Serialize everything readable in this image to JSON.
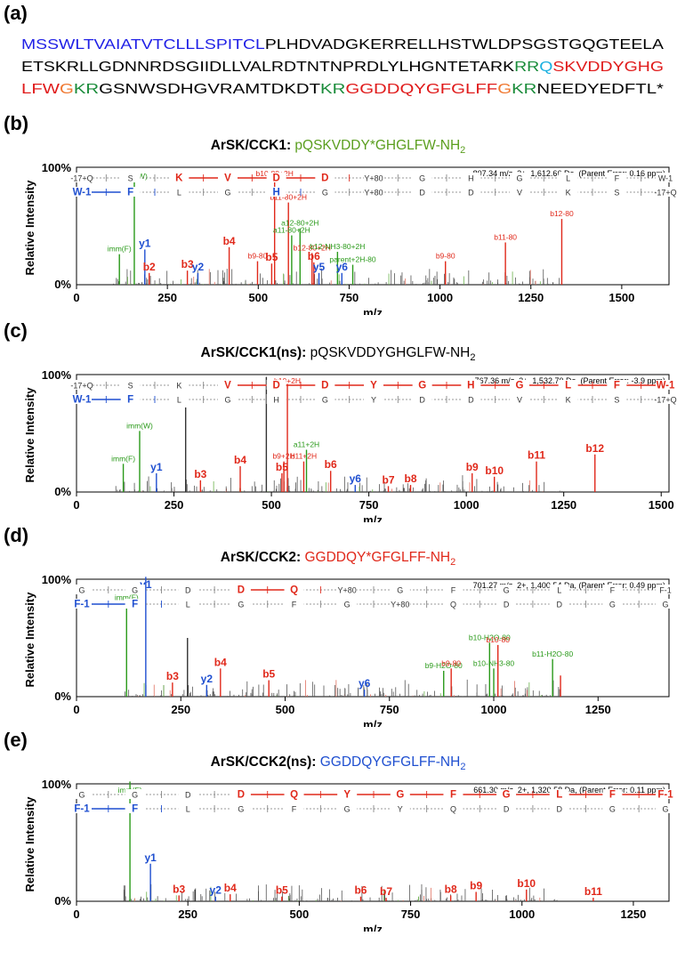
{
  "panel_a": {
    "label": "(a)",
    "lines": [
      [
        {
          "t": "MSSWLTVAIATVTCLLLSPITCL",
          "c": "#1f1fe6"
        },
        {
          "t": "PLHDVADGKERRELLHSTWLDPSGSTGQGTEELA",
          "c": "#000000"
        }
      ],
      [
        {
          "t": "ETSKRLLGDNNRDSGIIDLLVALRDTNTNPRDLYLHGNTETARK",
          "c": "#000000"
        },
        {
          "t": "RR",
          "c": "#1a8c3a"
        },
        {
          "t": "Q",
          "c": "#1ab0e0"
        },
        {
          "t": "SKVDDYGHG",
          "c": "#e01a1a"
        }
      ],
      [
        {
          "t": "LFW",
          "c": "#e01a1a"
        },
        {
          "t": "G",
          "c": "#f07830"
        },
        {
          "t": "KR",
          "c": "#1a8c3a"
        },
        {
          "t": "GSNWSDHGVRAMTDKDT",
          "c": "#000000"
        },
        {
          "t": "KR",
          "c": "#1a8c3a"
        },
        {
          "t": "GGDDQYGFGLFF",
          "c": "#e01a1a"
        },
        {
          "t": "G",
          "c": "#f07830"
        },
        {
          "t": "KR",
          "c": "#1a8c3a"
        },
        {
          "t": "NEEDYEDFTL*",
          "c": "#000000"
        }
      ]
    ]
  },
  "colors": {
    "b_ion": "#e0281a",
    "y_ion": "#1f4fd0",
    "neutral": "#2a9a1a",
    "peak": "#333333"
  },
  "chart_data": [
    {
      "type": "bar",
      "panel_label": "(b)",
      "title_prefix": "ArSK/CCK1:",
      "title_seq": "pQSKVDDY*GHGLFW-NH",
      "title_sub": "2",
      "title_color": "#5a9e1e",
      "ylabel": "Relative Intensity",
      "xlabel": "m/z",
      "xlim": [
        0,
        1630
      ],
      "xticks": [
        0,
        250,
        500,
        750,
        1000,
        1250,
        1500
      ],
      "yticks": [
        "0%",
        "100%"
      ],
      "precursor": "807.34 m/z, 2+, 1,612.66 Da, (Parent Error: 0.16 ppm)",
      "ladder_top": [
        "-17+Q",
        "S",
        "K",
        "V",
        "D",
        "D",
        "Y+80",
        "G",
        "H",
        "G",
        "L",
        "F",
        "W-1"
      ],
      "ladder_top_colored": [
        2,
        3,
        4,
        5
      ],
      "ladder_bottom": [
        "W-1",
        "F",
        "L",
        "G",
        "H",
        "G",
        "Y+80",
        "D",
        "D",
        "V",
        "K",
        "S",
        "-17+Q"
      ],
      "ladder_bottom_colored": [
        0,
        1,
        4
      ],
      "peaks": [
        {
          "x": 118,
          "h": 0.26,
          "c": "g",
          "label": "imm(F)"
        },
        {
          "x": 159,
          "h": 0.88,
          "c": "g",
          "label": "imm(W)"
        },
        {
          "x": 188,
          "h": 0.3,
          "c": "y",
          "label": "y1"
        },
        {
          "x": 200,
          "h": 0.1,
          "c": "b",
          "label": "b2"
        },
        {
          "x": 305,
          "h": 0.12,
          "c": "b",
          "label": "b3"
        },
        {
          "x": 334,
          "h": 0.1,
          "c": "y",
          "label": "y2"
        },
        {
          "x": 420,
          "h": 0.32,
          "c": "b",
          "label": "b4"
        },
        {
          "x": 498,
          "h": 0.2,
          "c": "b",
          "label": "b9-80"
        },
        {
          "x": 537,
          "h": 0.18,
          "c": "b",
          "label": "b5"
        },
        {
          "x": 545,
          "h": 0.94,
          "c": "b",
          "label": "b10-80+2H"
        },
        {
          "x": 583,
          "h": 0.7,
          "c": "b",
          "label": "b11-80+2H"
        },
        {
          "x": 592,
          "h": 0.42,
          "c": "g",
          "label": "a11-80+2H"
        },
        {
          "x": 615,
          "h": 0.48,
          "c": "g",
          "label": "a12-80+2H"
        },
        {
          "x": 648,
          "h": 0.27,
          "c": "b",
          "label": "b12-80+2H"
        },
        {
          "x": 653,
          "h": 0.19,
          "c": "b",
          "label": "b6"
        },
        {
          "x": 667,
          "h": 0.1,
          "c": "y",
          "label": "y5"
        },
        {
          "x": 718,
          "h": 0.28,
          "c": "g",
          "label": "b12-NH3-80+2H"
        },
        {
          "x": 730,
          "h": 0.1,
          "c": "y",
          "label": "y6"
        },
        {
          "x": 760,
          "h": 0.17,
          "c": "g",
          "label": "parent+2H-80"
        },
        {
          "x": 1015,
          "h": 0.2,
          "c": "b",
          "label": "b9-80"
        },
        {
          "x": 1180,
          "h": 0.36,
          "c": "b",
          "label": "b11-80"
        },
        {
          "x": 1335,
          "h": 0.56,
          "c": "b",
          "label": "b12-80"
        }
      ]
    },
    {
      "type": "bar",
      "panel_label": "(c)",
      "title_prefix": "ArSK/CCK1(ns):",
      "title_seq": "pQSKVDDYGHGLFW-NH",
      "title_sub": "2",
      "title_color": "#000000",
      "ylabel": "Relative Intensity",
      "xlabel": "m/z",
      "xlim": [
        0,
        1520
      ],
      "xticks": [
        0,
        250,
        500,
        750,
        1000,
        1250,
        1500
      ],
      "yticks": [
        "0%",
        "100%"
      ],
      "precursor": "767.36 m/z, 2+, 1,532.70 Da, (Parent Error: -3.9 ppm)",
      "ladder_top": [
        "-17+Q",
        "S",
        "K",
        "V",
        "D",
        "D",
        "Y",
        "G",
        "H",
        "G",
        "L",
        "F",
        "W-1"
      ],
      "ladder_top_colored": [
        3,
        4,
        5,
        6,
        7,
        8,
        9,
        10,
        11,
        12
      ],
      "ladder_bottom": [
        "W-1",
        "F",
        "L",
        "G",
        "H",
        "G",
        "Y",
        "D",
        "D",
        "V",
        "K",
        "S",
        "-17+Q"
      ],
      "ladder_bottom_colored": [
        0,
        1
      ],
      "peaks": [
        {
          "x": 120,
          "h": 0.24,
          "c": "g",
          "label": "imm(F)"
        },
        {
          "x": 162,
          "h": 0.52,
          "c": "g",
          "label": "imm(W)"
        },
        {
          "x": 205,
          "h": 0.16,
          "c": "y",
          "label": "y1"
        },
        {
          "x": 280,
          "h": 0.72,
          "c": "k",
          "label": ""
        },
        {
          "x": 318,
          "h": 0.1,
          "c": "b",
          "label": "b3"
        },
        {
          "x": 420,
          "h": 0.22,
          "c": "b",
          "label": "b4"
        },
        {
          "x": 487,
          "h": 0.98,
          "c": "k",
          "label": ""
        },
        {
          "x": 527,
          "h": 0.16,
          "c": "b",
          "label": "b5"
        },
        {
          "x": 532,
          "h": 0.26,
          "c": "b",
          "label": "b9+2H"
        },
        {
          "x": 541,
          "h": 0.92,
          "c": "b",
          "label": "b10+2H"
        },
        {
          "x": 583,
          "h": 0.26,
          "c": "b",
          "label": "b11+2H"
        },
        {
          "x": 590,
          "h": 0.36,
          "c": "g",
          "label": "a11+2H"
        },
        {
          "x": 652,
          "h": 0.18,
          "c": "b",
          "label": "b6"
        },
        {
          "x": 715,
          "h": 0.06,
          "c": "y",
          "label": "y6"
        },
        {
          "x": 800,
          "h": 0.05,
          "c": "b",
          "label": "b7"
        },
        {
          "x": 857,
          "h": 0.06,
          "c": "b",
          "label": "b8"
        },
        {
          "x": 1015,
          "h": 0.16,
          "c": "b",
          "label": "b9"
        },
        {
          "x": 1072,
          "h": 0.13,
          "c": "b",
          "label": "b10"
        },
        {
          "x": 1180,
          "h": 0.26,
          "c": "b",
          "label": "b11"
        },
        {
          "x": 1330,
          "h": 0.32,
          "c": "b",
          "label": "b12"
        }
      ]
    },
    {
      "type": "bar",
      "panel_label": "(d)",
      "title_prefix": "ArSK/CCK2:",
      "title_seq": "GGDDQY*GFGLFF-NH",
      "title_sub": "2",
      "title_color": "#e0281a",
      "ylabel": "Relative Intensity",
      "xlabel": "m/z",
      "xlim": [
        0,
        1420
      ],
      "xticks": [
        0,
        250,
        500,
        750,
        1000,
        1250
      ],
      "yticks": [
        "0%",
        "100%"
      ],
      "precursor": "701.27 m/z, 2+, 1,400.54 Da, (Parent Error: 0.49 ppm)",
      "ladder_top": [
        "G",
        "G",
        "D",
        "D",
        "Q",
        "Y+80",
        "G",
        "F",
        "G",
        "L",
        "F",
        "F-1"
      ],
      "ladder_top_colored": [
        3,
        4
      ],
      "ladder_bottom": [
        "F-1",
        "F",
        "L",
        "G",
        "F",
        "G",
        "Y+80",
        "Q",
        "D",
        "D",
        "G",
        "G"
      ],
      "ladder_bottom_colored": [
        0,
        1
      ],
      "peaks": [
        {
          "x": 120,
          "h": 0.8,
          "c": "g",
          "label": "imm(F)"
        },
        {
          "x": 166,
          "h": 1.02,
          "c": "y",
          "label": "y1"
        },
        {
          "x": 230,
          "h": 0.12,
          "c": "b",
          "label": "b3"
        },
        {
          "x": 266,
          "h": 0.5,
          "c": "k",
          "label": ""
        },
        {
          "x": 312,
          "h": 0.1,
          "c": "y",
          "label": "y2"
        },
        {
          "x": 345,
          "h": 0.24,
          "c": "b",
          "label": "b4"
        },
        {
          "x": 461,
          "h": 0.14,
          "c": "b",
          "label": "b5"
        },
        {
          "x": 690,
          "h": 0.06,
          "c": "y",
          "label": "y6"
        },
        {
          "x": 880,
          "h": 0.22,
          "c": "g",
          "label": "b9-H2O-80"
        },
        {
          "x": 898,
          "h": 0.24,
          "c": "b",
          "label": "b9-80"
        },
        {
          "x": 990,
          "h": 0.46,
          "c": "g",
          "label": "b10-H2O-80"
        },
        {
          "x": 1000,
          "h": 0.24,
          "c": "g",
          "label": "b10-NH3-80"
        },
        {
          "x": 1010,
          "h": 0.44,
          "c": "b",
          "label": "b10-80"
        },
        {
          "x": 1141,
          "h": 0.32,
          "c": "g",
          "label": "b11-H2O-80"
        },
        {
          "x": 1160,
          "h": 0.18,
          "c": "b",
          "label": ""
        }
      ]
    },
    {
      "type": "bar",
      "panel_label": "(e)",
      "title_prefix": "ArSK/CCK2(ns):",
      "title_seq": "GGDDQYGFGLFF-NH",
      "title_sub": "2",
      "title_color": "#1f4fd0",
      "ylabel": "Relative Intensity",
      "xlabel": "m/z",
      "xlim": [
        0,
        1330
      ],
      "xticks": [
        0,
        250,
        500,
        750,
        1000,
        1250
      ],
      "yticks": [
        "0%",
        "100%"
      ],
      "precursor": "661.30 m/z, 2+, 1,320.58 Da, (Parent Error: 0.11 ppm)",
      "ladder_top": [
        "G",
        "G",
        "D",
        "D",
        "Q",
        "Y",
        "G",
        "F",
        "G",
        "L",
        "F",
        "F-1"
      ],
      "ladder_top_colored": [
        3,
        4,
        5,
        6,
        7,
        8,
        9,
        10,
        11
      ],
      "ladder_bottom": [
        "F-1",
        "F",
        "L",
        "G",
        "F",
        "G",
        "Y",
        "Q",
        "D",
        "D",
        "G",
        "G"
      ],
      "ladder_bottom_colored": [
        0,
        1
      ],
      "peaks": [
        {
          "x": 120,
          "h": 1.05,
          "c": "g",
          "label": "imm(F)"
        },
        {
          "x": 166,
          "h": 0.32,
          "c": "y",
          "label": "y1"
        },
        {
          "x": 230,
          "h": 0.05,
          "c": "b",
          "label": "b3"
        },
        {
          "x": 266,
          "h": 0.1,
          "c": "k",
          "label": ""
        },
        {
          "x": 312,
          "h": 0.04,
          "c": "y",
          "label": "y2"
        },
        {
          "x": 345,
          "h": 0.06,
          "c": "b",
          "label": "b4"
        },
        {
          "x": 461,
          "h": 0.04,
          "c": "b",
          "label": "b5"
        },
        {
          "x": 638,
          "h": 0.04,
          "c": "b",
          "label": "b6"
        },
        {
          "x": 695,
          "h": 0.03,
          "c": "b",
          "label": "b7"
        },
        {
          "x": 840,
          "h": 0.05,
          "c": "b",
          "label": "b8"
        },
        {
          "x": 897,
          "h": 0.08,
          "c": "b",
          "label": "b9"
        },
        {
          "x": 1010,
          "h": 0.1,
          "c": "b",
          "label": "b10"
        },
        {
          "x": 1160,
          "h": 0.03,
          "c": "b",
          "label": "b11"
        }
      ]
    }
  ]
}
